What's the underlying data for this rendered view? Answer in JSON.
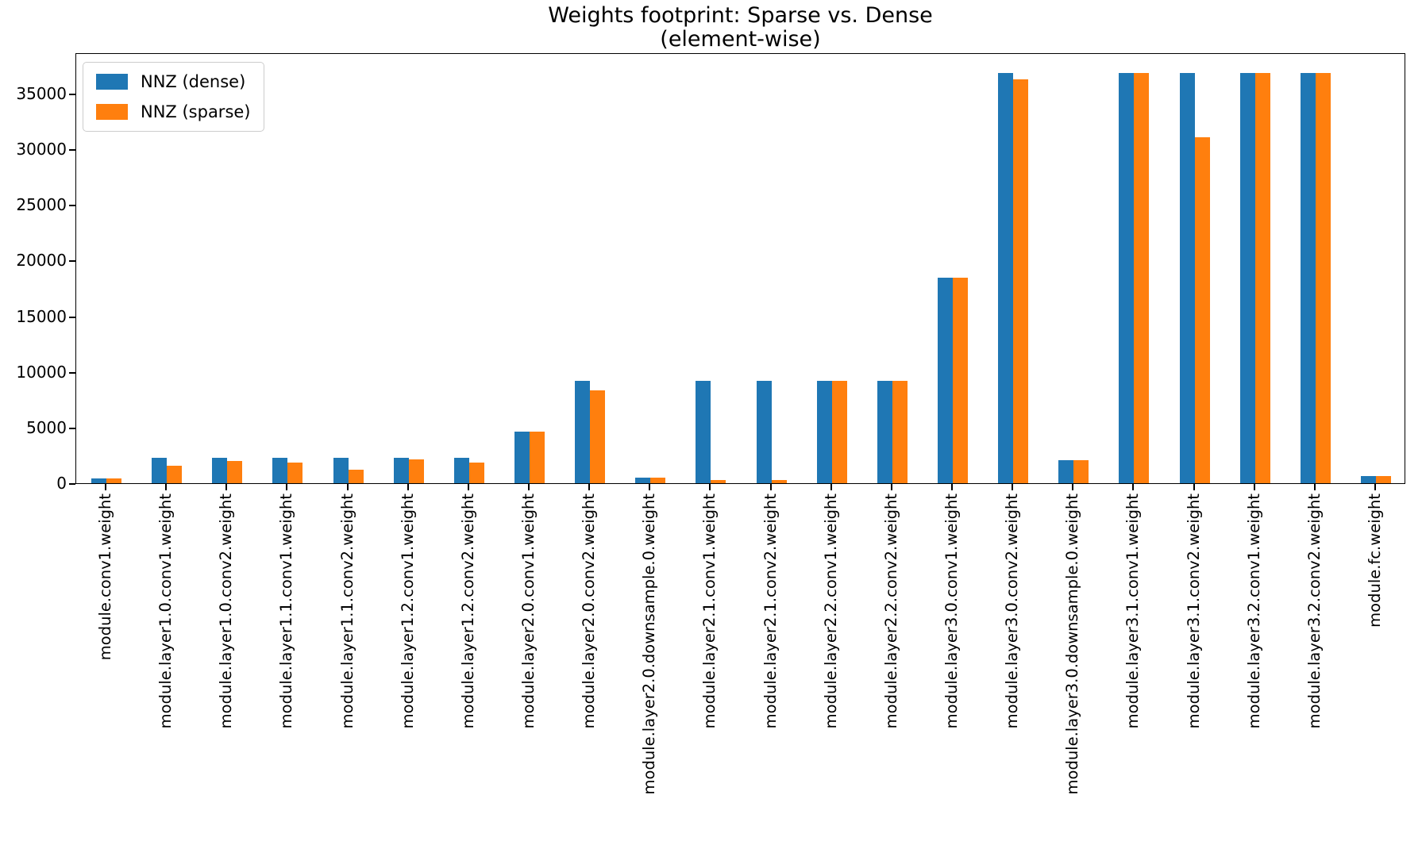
{
  "chart_data": {
    "type": "bar",
    "title": "Weights footprint: Sparse vs. Dense\n(element-wise)",
    "title_line1": "Weights footprint: Sparse vs. Dense",
    "title_line2": "(element-wise)",
    "xlabel": "",
    "ylabel": "",
    "grid": false,
    "legend_position": "upper left",
    "ylim": [
      0,
      38700
    ],
    "yticks": [
      0,
      5000,
      10000,
      15000,
      20000,
      25000,
      30000,
      35000
    ],
    "categories": [
      "module.conv1.weight",
      "module.layer1.0.conv1.weight",
      "module.layer1.0.conv2.weight",
      "module.layer1.1.conv1.weight",
      "module.layer1.1.conv2.weight",
      "module.layer1.2.conv1.weight",
      "module.layer1.2.conv2.weight",
      "module.layer2.0.conv1.weight",
      "module.layer2.0.conv2.weight",
      "module.layer2.0.downsample.0.weight",
      "module.layer2.1.conv1.weight",
      "module.layer2.1.conv2.weight",
      "module.layer2.2.conv1.weight",
      "module.layer2.2.conv2.weight",
      "module.layer3.0.conv1.weight",
      "module.layer3.0.conv2.weight",
      "module.layer3.0.downsample.0.weight",
      "module.layer3.1.conv1.weight",
      "module.layer3.1.conv2.weight",
      "module.layer3.2.conv1.weight",
      "module.layer3.2.conv2.weight",
      "module.fc.weight"
    ],
    "series": [
      {
        "name": "NNZ (dense)",
        "color": "#1f77b4",
        "values": [
          432,
          2304,
          2304,
          2304,
          2304,
          2304,
          2304,
          4608,
          9216,
          512,
          9216,
          9216,
          9216,
          9216,
          18432,
          36864,
          2048,
          36864,
          36864,
          36864,
          36864,
          640
        ]
      },
      {
        "name": "NNZ (sparse)",
        "color": "#ff7f0e",
        "values": [
          432,
          1570,
          1970,
          1830,
          1230,
          2140,
          1870,
          4608,
          8310,
          512,
          275,
          275,
          9216,
          9216,
          18432,
          36290,
          2048,
          36864,
          31100,
          36864,
          36864,
          640
        ]
      }
    ],
    "axis_color": "#000000",
    "background_color": "#ffffff"
  }
}
